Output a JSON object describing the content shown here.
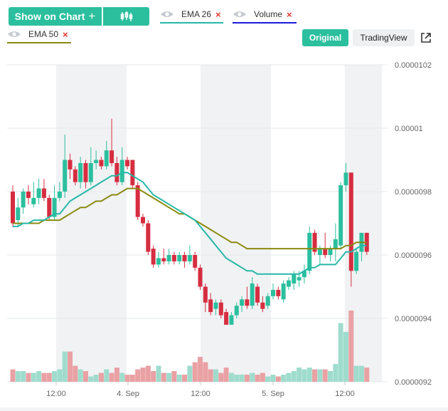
{
  "controls": {
    "show_on_chart": "Show on Chart",
    "show_plus": "+",
    "original": "Original",
    "tradingview": "TradingView",
    "remove": "×"
  },
  "legend": [
    {
      "name": "EMA 26",
      "color": "#26b8a8"
    },
    {
      "name": "Volume",
      "color": "#1a1adb"
    },
    {
      "name": "EMA 50",
      "color": "#8a8a10"
    }
  ],
  "colors": {
    "up": "#2bbf9e",
    "down": "#d62d40",
    "up_vol": "#9fdccd",
    "down_vol": "#e9a1a4",
    "shade": "#f1f2f4"
  },
  "chart_data": {
    "type": "candlestick",
    "y_ticks": [
      "0.0000102",
      "0.00001",
      "0.0000098",
      "0.0000096",
      "0.0000094",
      "0.0000092"
    ],
    "x_ticks": [
      "12:00",
      "4. Sep",
      "12:00",
      "5. Sep",
      "12:00"
    ],
    "ylim": [
      9.2e-06,
      1.02e-05
    ],
    "candles": [
      [
        9.8e-06,
        9.7e-06,
        9.82e-06,
        9.69e-06,
        "d"
      ],
      [
        9.71e-06,
        9.75e-06,
        9.78e-06,
        9.69e-06,
        "u"
      ],
      [
        9.75e-06,
        9.8e-06,
        9.81e-06,
        9.73e-06,
        "u"
      ],
      [
        9.8e-06,
        9.78e-06,
        9.82e-06,
        9.76e-06,
        "d"
      ],
      [
        9.76e-06,
        9.78e-06,
        9.83e-06,
        9.75e-06,
        "u"
      ],
      [
        9.78e-06,
        9.81e-06,
        9.84e-06,
        9.76e-06,
        "u"
      ],
      [
        9.81e-06,
        9.78e-06,
        9.84e-06,
        9.77e-06,
        "d"
      ],
      [
        9.78e-06,
        9.72e-06,
        9.79e-06,
        9.71e-06,
        "d"
      ],
      [
        9.72e-06,
        9.78e-06,
        9.82e-06,
        9.71e-06,
        "u"
      ],
      [
        9.78e-06,
        9.8e-06,
        9.83e-06,
        9.77e-06,
        "u"
      ],
      [
        9.8e-06,
        9.9e-06,
        9.98e-06,
        9.78e-06,
        "u"
      ],
      [
        9.9e-06,
        9.87e-06,
        9.92e-06,
        9.84e-06,
        "d"
      ],
      [
        9.87e-06,
        9.83e-06,
        9.88e-06,
        9.82e-06,
        "d"
      ],
      [
        9.83e-06,
        9.89e-06,
        9.91e-06,
        9.81e-06,
        "u"
      ],
      [
        9.89e-06,
        9.83e-06,
        9.9e-06,
        9.81e-06,
        "d"
      ],
      [
        9.83e-06,
        9.89e-06,
        9.94e-06,
        9.82e-06,
        "u"
      ],
      [
        9.89e-06,
        9.9e-06,
        9.93e-06,
        9.87e-06,
        "u"
      ],
      [
        9.9e-06,
        9.88e-06,
        9.91e-06,
        9.87e-06,
        "d"
      ],
      [
        9.88e-06,
        9.93e-06,
        9.96e-06,
        9.87e-06,
        "u"
      ],
      [
        9.93e-06,
        9.89e-06,
        1.003e-05,
        9.88e-06,
        "d"
      ],
      [
        9.89e-06,
        9.83e-06,
        9.91e-06,
        9.82e-06,
        "d"
      ],
      [
        9.83e-06,
        9.9e-06,
        9.94e-06,
        9.82e-06,
        "u"
      ],
      [
        9.9e-06,
        9.88e-06,
        9.91e-06,
        9.87e-06,
        "d"
      ],
      [
        9.9e-06,
        9.82e-06,
        9.9e-06,
        9.81e-06,
        "d"
      ],
      [
        9.82e-06,
        9.72e-06,
        9.83e-06,
        9.71e-06,
        "d"
      ],
      [
        9.72e-06,
        9.7e-06,
        9.73e-06,
        9.69e-06,
        "d"
      ],
      [
        9.7e-06,
        9.61e-06,
        9.71e-06,
        9.6e-06,
        "d"
      ],
      [
        9.62e-06,
        9.57e-06,
        9.63e-06,
        9.56e-06,
        "d"
      ],
      [
        9.57e-06,
        9.59e-06,
        9.61e-06,
        9.56e-06,
        "u"
      ],
      [
        9.59e-06,
        9.58e-06,
        9.62e-06,
        9.57e-06,
        "d"
      ],
      [
        9.58e-06,
        9.6e-06,
        9.62e-06,
        9.57e-06,
        "u"
      ],
      [
        9.6e-06,
        9.58e-06,
        9.61e-06,
        9.57e-06,
        "d"
      ],
      [
        9.58e-06,
        9.6e-06,
        9.61e-06,
        9.57e-06,
        "u"
      ],
      [
        9.6e-06,
        9.58e-06,
        9.61e-06,
        9.56e-06,
        "d"
      ],
      [
        9.58e-06,
        9.6e-06,
        9.63e-06,
        9.57e-06,
        "u"
      ],
      [
        9.6e-06,
        9.56e-06,
        9.61e-06,
        9.55e-06,
        "d"
      ],
      [
        9.56e-06,
        9.5e-06,
        9.57e-06,
        9.49e-06,
        "d"
      ],
      [
        9.5e-06,
        9.45e-06,
        9.51e-06,
        9.42e-06,
        "d"
      ],
      [
        9.46e-06,
        9.42e-06,
        9.48e-06,
        9.41e-06,
        "d"
      ],
      [
        9.43e-06,
        9.45e-06,
        9.46e-06,
        9.41e-06,
        "u"
      ],
      [
        9.45e-06,
        9.41e-06,
        9.46e-06,
        9.4e-06,
        "d"
      ],
      [
        9.42e-06,
        9.38e-06,
        9.43e-06,
        9.38e-06,
        "d"
      ],
      [
        9.38e-06,
        9.41e-06,
        9.42e-06,
        9.38e-06,
        "u"
      ],
      [
        9.41e-06,
        9.44e-06,
        9.45e-06,
        9.4e-06,
        "u"
      ],
      [
        9.44e-06,
        9.46e-06,
        9.47e-06,
        9.42e-06,
        "u"
      ],
      [
        9.46e-06,
        9.44e-06,
        9.5e-06,
        9.43e-06,
        "d"
      ],
      [
        9.44e-06,
        9.51e-06,
        9.53e-06,
        9.43e-06,
        "u"
      ],
      [
        9.5e-06,
        9.45e-06,
        9.51e-06,
        9.44e-06,
        "d"
      ],
      [
        9.45e-06,
        9.43e-06,
        9.47e-06,
        9.42e-06,
        "d"
      ],
      [
        9.44e-06,
        9.47e-06,
        9.48e-06,
        9.43e-06,
        "u"
      ],
      [
        9.47e-06,
        9.49e-06,
        9.51e-06,
        9.46e-06,
        "u"
      ],
      [
        9.49e-06,
        9.47e-06,
        9.5e-06,
        9.46e-06,
        "d"
      ],
      [
        9.46e-06,
        9.51e-06,
        9.52e-06,
        9.45e-06,
        "u"
      ],
      [
        9.5e-06,
        9.52e-06,
        9.53e-06,
        9.49e-06,
        "u"
      ],
      [
        9.51e-06,
        9.54e-06,
        9.55e-06,
        9.49e-06,
        "u"
      ],
      [
        9.52e-06,
        9.53e-06,
        9.55e-06,
        9.5e-06,
        "u"
      ],
      [
        9.53e-06,
        9.55e-06,
        9.57e-06,
        9.51e-06,
        "u"
      ],
      [
        9.55e-06,
        9.67e-06,
        9.69e-06,
        9.54e-06,
        "u"
      ],
      [
        9.67e-06,
        9.61e-06,
        9.68e-06,
        9.6e-06,
        "d"
      ],
      [
        9.6e-06,
        9.62e-06,
        9.63e-06,
        9.57e-06,
        "u"
      ],
      [
        9.62e-06,
        9.6e-06,
        9.67e-06,
        9.59e-06,
        "d"
      ],
      [
        9.6e-06,
        9.62e-06,
        9.63e-06,
        9.58e-06,
        "u"
      ],
      [
        9.62e-06,
        9.65e-06,
        9.7e-06,
        9.58e-06,
        "u"
      ],
      [
        9.63e-06,
        9.82e-06,
        9.83e-06,
        9.62e-06,
        "u"
      ],
      [
        9.82e-06,
        9.86e-06,
        9.89e-06,
        9.8e-06,
        "u"
      ],
      [
        9.86e-06,
        9.55e-06,
        9.86e-06,
        9.5e-06,
        "d"
      ],
      [
        9.55e-06,
        9.61e-06,
        9.62e-06,
        9.54e-06,
        "u"
      ],
      [
        9.61e-06,
        9.67e-06,
        9.67e-06,
        9.58e-06,
        "u"
      ],
      [
        9.67e-06,
        9.61e-06,
        9.67e-06,
        9.6e-06,
        "d"
      ]
    ],
    "volume": [
      7,
      6,
      6,
      5,
      5,
      6,
      5,
      5,
      6,
      7,
      17,
      17,
      9,
      7,
      6,
      3,
      4,
      5,
      7,
      5,
      8,
      5,
      4,
      4,
      7,
      8,
      9,
      6,
      9,
      5,
      5,
      6,
      4,
      4,
      9,
      11,
      14,
      11,
      7,
      7,
      5,
      8,
      5,
      4,
      4,
      4,
      5,
      4,
      5,
      3,
      4,
      3,
      4,
      5,
      6,
      8,
      7,
      8,
      7,
      7,
      7,
      6,
      10,
      33,
      28,
      40,
      9,
      9,
      8
    ],
    "ema26": [
      9.69e-06,
      9.69e-06,
      9.7e-06,
      9.7e-06,
      9.71e-06,
      9.71e-06,
      9.71e-06,
      9.72e-06,
      9.73e-06,
      9.73e-06,
      9.75e-06,
      9.77e-06,
      9.78e-06,
      9.79e-06,
      9.8e-06,
      9.81e-06,
      9.82e-06,
      9.83e-06,
      9.84e-06,
      9.85e-06,
      9.85e-06,
      9.86e-06,
      9.86e-06,
      9.85e-06,
      9.84e-06,
      9.83e-06,
      9.81e-06,
      9.79e-06,
      9.78e-06,
      9.77e-06,
      9.76e-06,
      9.75e-06,
      9.74e-06,
      9.73e-06,
      9.72e-06,
      9.71e-06,
      9.69e-06,
      9.67e-06,
      9.65e-06,
      9.63e-06,
      9.61e-06,
      9.59e-06,
      9.58e-06,
      9.57e-06,
      9.56e-06,
      9.55e-06,
      9.55e-06,
      9.54e-06,
      9.54e-06,
      9.54e-06,
      9.54e-06,
      9.54e-06,
      9.54e-06,
      9.54e-06,
      9.54e-06,
      9.54e-06,
      9.55e-06,
      9.56e-06,
      9.56e-06,
      9.57e-06,
      9.57e-06,
      9.57e-06,
      9.57e-06,
      9.59e-06,
      9.61e-06,
      9.61e-06,
      9.62e-06,
      9.63e-06,
      9.63e-06
    ],
    "ema50": [
      9.7e-06,
      9.7e-06,
      9.7e-06,
      9.7e-06,
      9.7e-06,
      9.7e-06,
      9.71e-06,
      9.71e-06,
      9.71e-06,
      9.71e-06,
      9.72e-06,
      9.73e-06,
      9.74e-06,
      9.75e-06,
      9.75e-06,
      9.76e-06,
      9.77e-06,
      9.77e-06,
      9.78e-06,
      9.79e-06,
      9.79e-06,
      9.8e-06,
      9.81e-06,
      9.81e-06,
      9.81e-06,
      9.8e-06,
      9.79e-06,
      9.78e-06,
      9.77e-06,
      9.76e-06,
      9.75e-06,
      9.74e-06,
      9.73e-06,
      9.73e-06,
      9.72e-06,
      9.71e-06,
      9.7e-06,
      9.69e-06,
      9.68e-06,
      9.67e-06,
      9.66e-06,
      9.65e-06,
      9.64e-06,
      9.64e-06,
      9.63e-06,
      9.62e-06,
      9.62e-06,
      9.62e-06,
      9.62e-06,
      9.62e-06,
      9.62e-06,
      9.62e-06,
      9.62e-06,
      9.62e-06,
      9.62e-06,
      9.62e-06,
      9.62e-06,
      9.62e-06,
      9.62e-06,
      9.62e-06,
      9.62e-06,
      9.62e-06,
      9.62e-06,
      9.62e-06,
      9.63e-06,
      9.63e-06,
      9.64e-06,
      9.64e-06,
      9.64e-06
    ]
  }
}
